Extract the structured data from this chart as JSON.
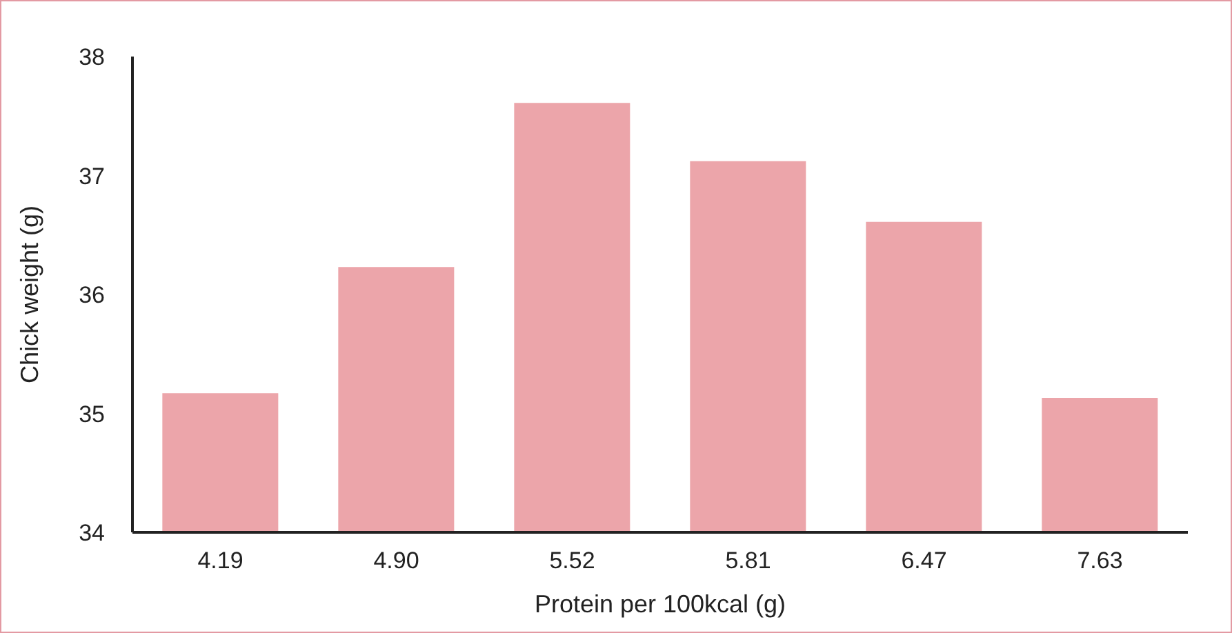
{
  "chart_data": {
    "type": "bar",
    "xlabel": "Protein per 100kcal (g)",
    "ylabel": "Chick weight (g)",
    "categories": [
      "4.19",
      "4.90",
      "5.52",
      "5.81",
      "6.47",
      "7.63"
    ],
    "values": [
      35.17,
      36.23,
      37.61,
      37.12,
      36.61,
      35.13
    ],
    "color": "#eca5aa",
    "ylim": [
      34,
      38
    ],
    "yticks": [
      34,
      35,
      36,
      37,
      38
    ],
    "grid": false,
    "legend": false
  }
}
